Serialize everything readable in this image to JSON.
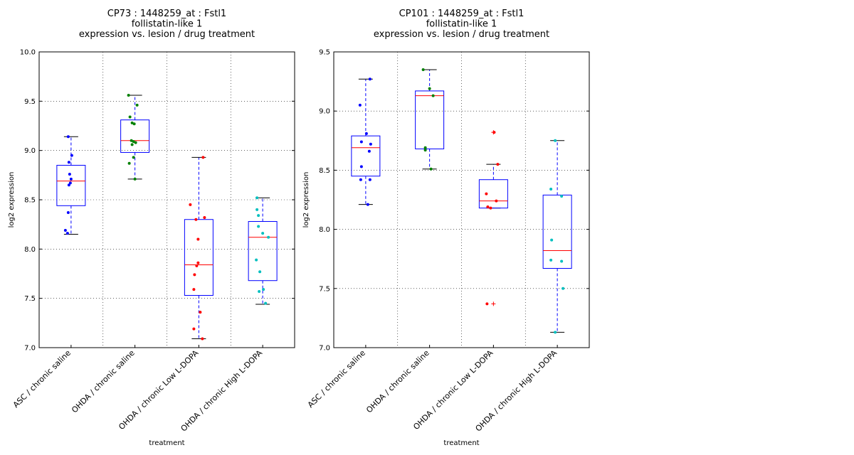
{
  "chart_data": [
    {
      "type": "box",
      "title": [
        "CP73 : 1448259_at : Fstl1",
        "follistatin-like 1",
        "expression vs. lesion / drug treatment"
      ],
      "xlabel": "treatment",
      "ylabel": "log2 expression",
      "ylim": [
        7.0,
        10.0
      ],
      "yticks": [
        "7.0",
        "7.5",
        "8.0",
        "8.5",
        "9.0",
        "9.5",
        "10.0"
      ],
      "grid": true,
      "categories": [
        "ASC / chronic saline",
        "OHDA / chronic saline",
        "OHDA / chronic Low L-DOPA",
        "OHDA / chronic High L-DOPA"
      ],
      "colors": [
        "#0000ff",
        "#008000",
        "#ff0000",
        "#00bfbf"
      ],
      "box_color": "#0000ff",
      "median_color": "#ff0000",
      "boxes": [
        {
          "whisker_low": 8.15,
          "q1": 8.44,
          "median": 8.69,
          "q3": 8.85,
          "whisker_high": 9.14,
          "outliers": []
        },
        {
          "whisker_low": 8.71,
          "q1": 8.98,
          "median": 9.1,
          "q3": 9.31,
          "whisker_high": 9.56,
          "outliers": []
        },
        {
          "whisker_low": 7.09,
          "q1": 7.53,
          "median": 7.84,
          "q3": 8.3,
          "whisker_high": 8.93,
          "outliers": []
        },
        {
          "whisker_low": 7.44,
          "q1": 7.68,
          "median": 8.12,
          "q3": 8.28,
          "whisker_high": 8.52,
          "outliers": []
        }
      ],
      "points": [
        [
          9.14,
          8.95,
          8.88,
          8.76,
          8.71,
          8.67,
          8.65,
          8.37,
          8.19,
          8.16
        ],
        [
          9.56,
          9.46,
          9.34,
          9.28,
          9.27,
          9.1,
          9.09,
          9.08,
          9.06,
          8.93,
          8.87,
          8.71
        ],
        [
          8.93,
          8.45,
          8.32,
          8.3,
          8.1,
          7.86,
          7.83,
          7.74,
          7.59,
          7.36,
          7.19,
          7.09
        ],
        [
          8.52,
          8.4,
          8.34,
          8.23,
          8.16,
          8.12,
          7.89,
          7.77,
          7.59,
          7.57,
          7.45
        ]
      ]
    },
    {
      "type": "box",
      "title": [
        "CP101 : 1448259_at : Fstl1",
        "follistatin-like 1",
        "expression vs. lesion / drug treatment"
      ],
      "xlabel": "treatment",
      "ylabel": "log2 expression",
      "ylim": [
        7.0,
        9.5
      ],
      "yticks": [
        "7.0",
        "7.5",
        "8.0",
        "8.5",
        "9.0",
        "9.5"
      ],
      "grid": true,
      "categories": [
        "ASC / chronic saline",
        "OHDA / chronic saline",
        "OHDA / chronic Low L-DOPA",
        "OHDA / chronic High L-DOPA"
      ],
      "colors": [
        "#0000ff",
        "#008000",
        "#ff0000",
        "#00bfbf"
      ],
      "box_color": "#0000ff",
      "median_color": "#ff0000",
      "boxes": [
        {
          "whisker_low": 8.21,
          "q1": 8.45,
          "median": 8.69,
          "q3": 8.79,
          "whisker_high": 9.27,
          "outliers": []
        },
        {
          "whisker_low": 8.51,
          "q1": 8.68,
          "median": 9.13,
          "q3": 9.17,
          "whisker_high": 9.35,
          "outliers": []
        },
        {
          "whisker_low": 8.18,
          "q1": 8.18,
          "median": 8.24,
          "q3": 8.42,
          "whisker_high": 8.55,
          "outliers": [
            8.82,
            7.37
          ]
        },
        {
          "whisker_low": 7.13,
          "q1": 7.67,
          "median": 7.82,
          "q3": 8.29,
          "whisker_high": 8.75,
          "outliers": []
        }
      ],
      "points": [
        [
          9.27,
          9.05,
          8.81,
          8.74,
          8.72,
          8.66,
          8.53,
          8.42,
          8.42,
          8.21
        ],
        [
          9.35,
          9.19,
          9.13,
          8.69,
          8.67,
          8.51
        ],
        [
          8.82,
          8.55,
          8.3,
          8.24,
          8.19,
          8.18,
          7.37
        ],
        [
          8.75,
          8.34,
          8.28,
          7.91,
          7.74,
          7.73,
          7.5,
          7.13
        ]
      ]
    }
  ]
}
